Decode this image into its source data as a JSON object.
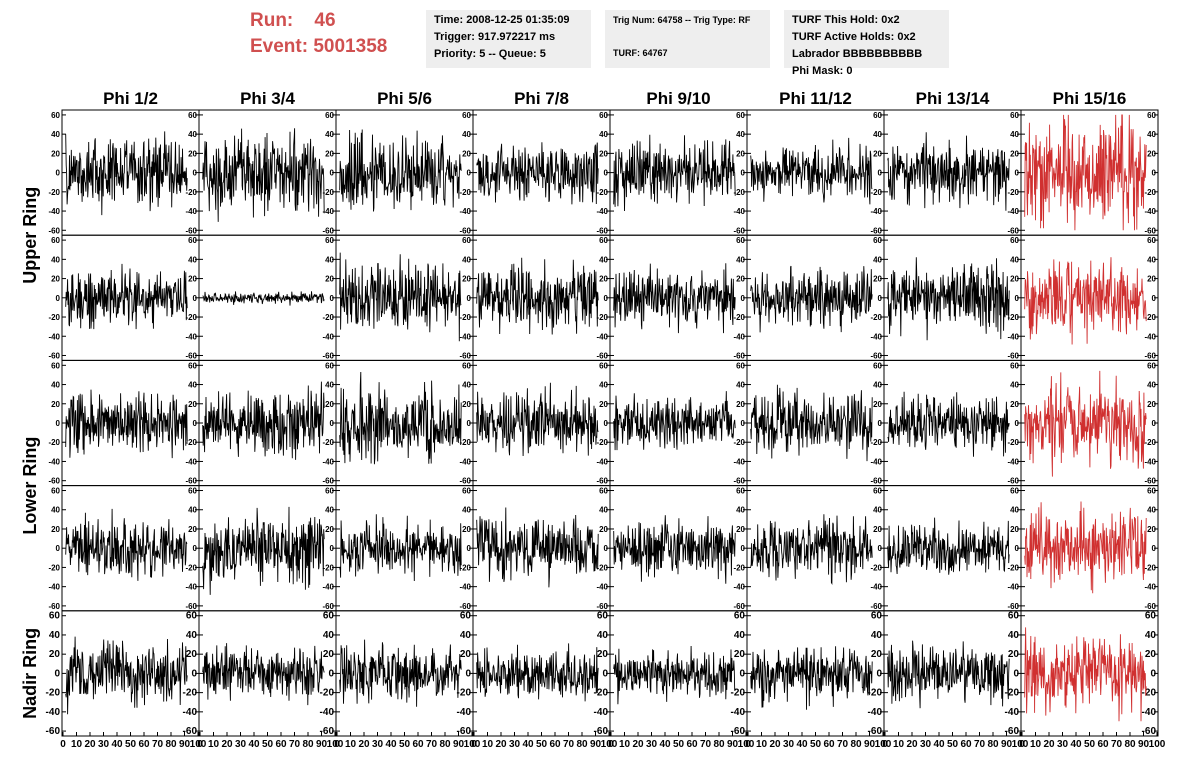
{
  "header": {
    "run_label": "Run:",
    "run_value": "46",
    "event_label": "Event:",
    "event_value": "5001358",
    "accent_color": "#d05050"
  },
  "info_time": {
    "time": "Time: 2008-12-25 01:35:09",
    "trigger": "Trigger: 917.972217 ms",
    "priority": "Priority: 5 -- Queue: 5"
  },
  "info_trig": {
    "trig": "Trig Num: 64758 -- Trig Type: RF",
    "turf": "TURF: 64767"
  },
  "info_turf": {
    "this_hold": "TURF This Hold: 0x2",
    "active_holds": "TURF Active Holds: 0x2",
    "labrador": "Labrador BBBBBBBBBB",
    "phi_mask": "Phi Mask: 0"
  },
  "chart_data": {
    "type": "line",
    "columns": [
      "Phi 1/2",
      "Phi 3/4",
      "Phi 5/6",
      "Phi 7/8",
      "Phi 9/10",
      "Phi 11/12",
      "Phi 13/14",
      "Phi 15/16"
    ],
    "ring_labels": [
      "Upper Ring",
      "Lower Ring",
      "Nadir Ring"
    ],
    "row_ring_index": [
      0,
      0,
      1,
      1,
      2
    ],
    "y_ticks": [
      60,
      40,
      20,
      0,
      -20,
      -40,
      -60
    ],
    "ylim": [
      -62,
      62
    ],
    "x_ticks": [
      0,
      10,
      20,
      30,
      40,
      50,
      60,
      70,
      80,
      90,
      100
    ],
    "xlim": [
      0,
      100
    ],
    "trace_color": "#000000",
    "highlight_color": "#d03030",
    "highlight_column": 7,
    "waveform_samples": 260,
    "panels": [
      [
        {
          "amp": 18,
          "color": "#000000"
        },
        {
          "amp": 20,
          "color": "#000000"
        },
        {
          "amp": 20,
          "color": "#000000"
        },
        {
          "amp": 15,
          "color": "#000000"
        },
        {
          "amp": 16,
          "color": "#000000"
        },
        {
          "amp": 13,
          "color": "#000000"
        },
        {
          "amp": 16,
          "color": "#000000"
        },
        {
          "amp": 26,
          "color": "#d03030"
        }
      ],
      [
        {
          "amp": 14,
          "color": "#000000"
        },
        {
          "amp": 3,
          "color": "#000000"
        },
        {
          "amp": 18,
          "color": "#000000"
        },
        {
          "amp": 16,
          "color": "#000000"
        },
        {
          "amp": 14,
          "color": "#000000"
        },
        {
          "amp": 15,
          "color": "#000000"
        },
        {
          "amp": 17,
          "color": "#000000"
        },
        {
          "amp": 18,
          "color": "#d03030"
        }
      ],
      [
        {
          "amp": 16,
          "color": "#000000"
        },
        {
          "amp": 16,
          "color": "#000000"
        },
        {
          "amp": 18,
          "color": "#000000"
        },
        {
          "amp": 15,
          "color": "#000000"
        },
        {
          "amp": 13,
          "color": "#000000"
        },
        {
          "amp": 15,
          "color": "#000000"
        },
        {
          "amp": 15,
          "color": "#000000"
        },
        {
          "amp": 20,
          "color": "#d03030"
        }
      ],
      [
        {
          "amp": 15,
          "color": "#000000"
        },
        {
          "amp": 18,
          "color": "#000000"
        },
        {
          "amp": 14,
          "color": "#000000"
        },
        {
          "amp": 16,
          "color": "#000000"
        },
        {
          "amp": 14,
          "color": "#000000"
        },
        {
          "amp": 15,
          "color": "#000000"
        },
        {
          "amp": 14,
          "color": "#000000"
        },
        {
          "amp": 18,
          "color": "#d03030"
        }
      ],
      [
        {
          "amp": 16,
          "color": "#000000"
        },
        {
          "amp": 13,
          "color": "#000000"
        },
        {
          "amp": 14,
          "color": "#000000"
        },
        {
          "amp": 12,
          "color": "#000000"
        },
        {
          "amp": 12,
          "color": "#000000"
        },
        {
          "amp": 14,
          "color": "#000000"
        },
        {
          "amp": 14,
          "color": "#000000"
        },
        {
          "amp": 19,
          "color": "#d03030"
        }
      ]
    ]
  }
}
